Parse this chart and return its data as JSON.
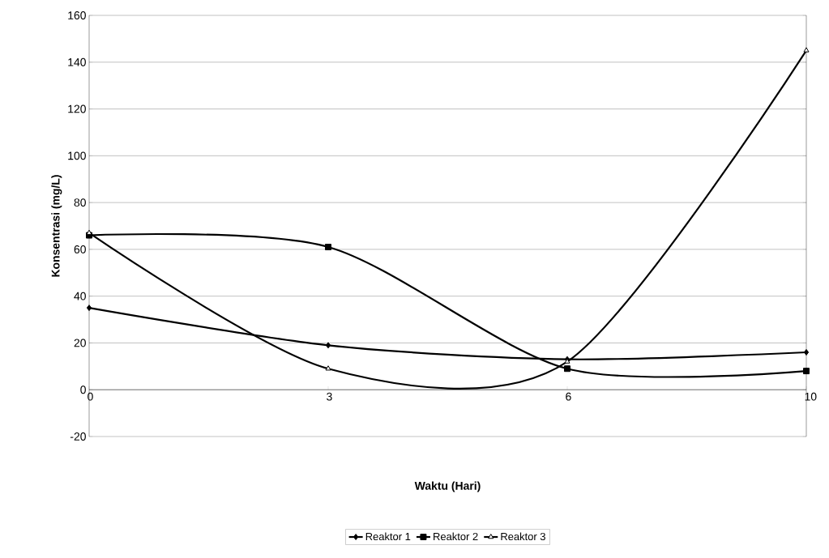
{
  "chart_data": {
    "type": "line",
    "xlabel": "Waktu (Hari)",
    "ylabel": "Konsentrasi (mg/L)",
    "categories": [
      "0",
      "3",
      "6",
      "10"
    ],
    "series": [
      {
        "name": "Reaktor 1",
        "color": "#000000",
        "marker": "diamond",
        "values": [
          35,
          19,
          13,
          16
        ]
      },
      {
        "name": "Reaktor 2",
        "color": "#000000",
        "marker": "square",
        "values": [
          66,
          61,
          9,
          8
        ]
      },
      {
        "name": "Reaktor 3",
        "color": "#000000",
        "marker": "triangle",
        "values": [
          67,
          9,
          12,
          145
        ]
      }
    ],
    "ylim": [
      -20,
      160
    ],
    "yticks": [
      -20,
      0,
      20,
      40,
      60,
      80,
      100,
      120,
      140,
      160
    ],
    "grid": "y",
    "legend": "bottom"
  }
}
